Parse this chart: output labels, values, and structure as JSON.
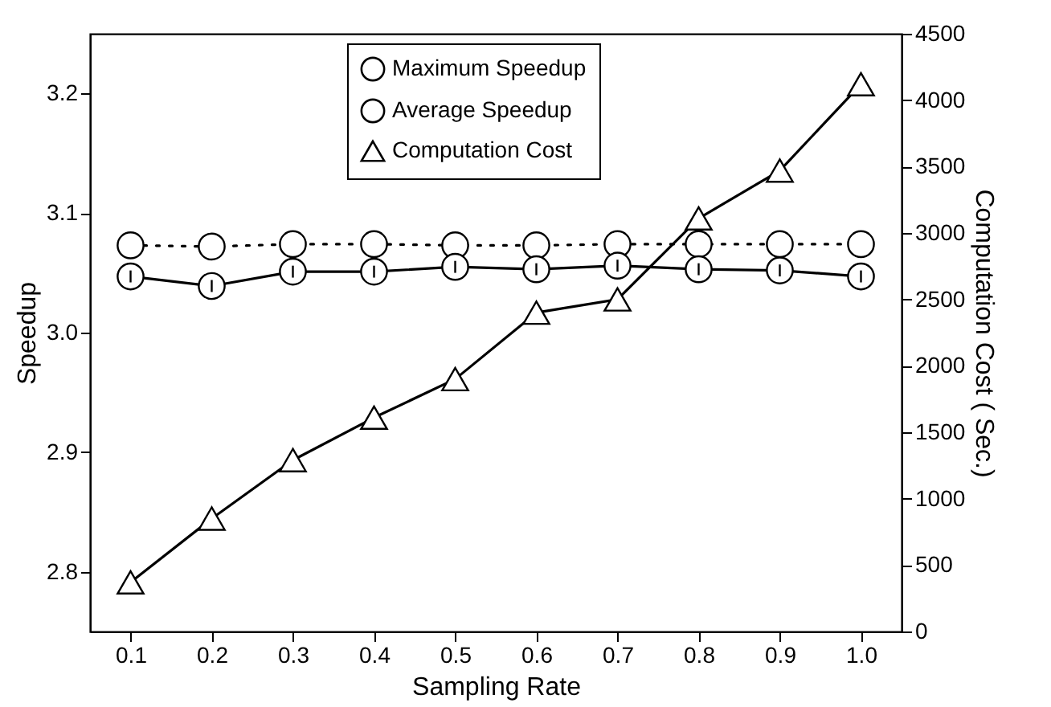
{
  "chart_data": {
    "type": "line",
    "xlabel": "Sampling Rate",
    "ylabel": "Speedup",
    "y2label": "Computation Cost ( Sec.)",
    "x": [
      0.1,
      0.2,
      0.3,
      0.4,
      0.5,
      0.6,
      0.7,
      0.8,
      0.9,
      1.0
    ],
    "xlim": [
      0.05,
      1.05
    ],
    "xticks": [
      0.1,
      0.2,
      0.3,
      0.4,
      0.5,
      0.6,
      0.7,
      0.8,
      0.9,
      {
        "value": 1.0,
        "label": "1.0"
      }
    ],
    "ylim": [
      2.75,
      3.25
    ],
    "yticks": [
      2.8,
      2.9,
      {
        "value": 3.0,
        "label": "3.0"
      },
      3.1,
      3.2
    ],
    "y2lim": [
      0,
      4500
    ],
    "y2ticks": [
      0,
      500,
      1000,
      1500,
      2000,
      2500,
      3000,
      3500,
      4000,
      4500
    ],
    "legend": "top",
    "grid": false,
    "series": [
      {
        "name": "Maximum Speedup",
        "color": "#000000",
        "marker": "circle",
        "line_style": "dotted",
        "values": [
          3.073,
          3.072,
          3.074,
          3.074,
          3.073,
          3.073,
          3.074,
          3.074,
          3.074,
          3.074
        ]
      },
      {
        "name": "Average Speedup",
        "color": "#000000",
        "marker": "circle",
        "line_style": "solid",
        "values": [
          3.047,
          3.039,
          3.051,
          3.051,
          3.055,
          3.053,
          3.056,
          3.053,
          3.052,
          3.047
        ],
        "errors": [
          0.005,
          0.005,
          0.005,
          0.005,
          0.005,
          0.005,
          0.005,
          0.005,
          0.005,
          0.005
        ]
      },
      {
        "name": "Computation Cost",
        "color": "#000000",
        "marker": "triangle",
        "line_style": "solid",
        "axis": "y2",
        "values": [
          370,
          850,
          1290,
          1610,
          1900,
          2400,
          2500,
          3110,
          3470,
          4120
        ]
      }
    ]
  }
}
